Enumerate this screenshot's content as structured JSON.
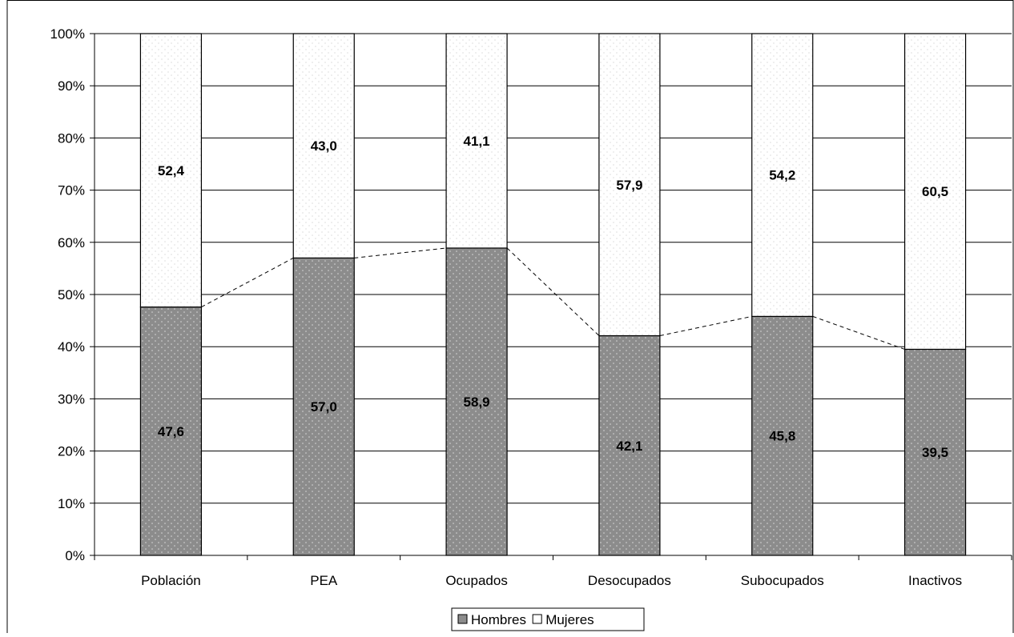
{
  "chart_data": {
    "type": "bar",
    "stacked": true,
    "categories": [
      "Población",
      "PEA",
      "Ocupados",
      "Desocupados",
      "Subocupados",
      "Inactivos"
    ],
    "series": [
      {
        "name": "Hombres",
        "values": [
          47.6,
          57.0,
          58.9,
          42.1,
          45.8,
          39.5
        ],
        "labels": [
          "47,6",
          "57,0",
          "58,9",
          "42,1",
          "45,8",
          "39,5"
        ],
        "color": "#8c8c8c"
      },
      {
        "name": "Mujeres",
        "values": [
          52.4,
          43.0,
          41.1,
          57.9,
          54.2,
          60.5
        ],
        "labels": [
          "52,4",
          "43,0",
          "41,1",
          "57,9",
          "54,2",
          "60,5"
        ],
        "color": "#ffffff"
      }
    ],
    "yticks": [
      "0%",
      "10%",
      "20%",
      "30%",
      "40%",
      "50%",
      "60%",
      "70%",
      "80%",
      "90%",
      "100%"
    ],
    "ylim": [
      0,
      100
    ],
    "grid": true,
    "legend_position": "bottom",
    "connector_lines": "dashed"
  }
}
